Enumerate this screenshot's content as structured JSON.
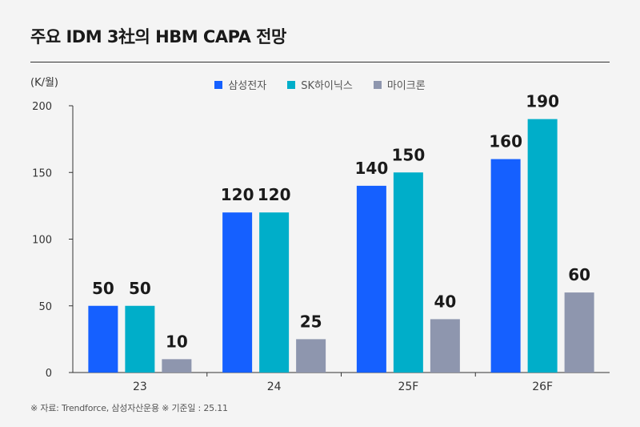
{
  "header": {
    "title": "주요 IDM 3社의 HBM CAPA 전망"
  },
  "footnote": "※ 자료: Trendforce, 삼성자산운용 ※ 기준일 : 25.11",
  "colors": {
    "samsung": "#1560ff",
    "skhynix": "#00aec9",
    "micron": "#8e96ae",
    "axis": "#333333"
  },
  "chart_data": {
    "type": "bar",
    "title": "주요 IDM 3社의 HBM CAPA 전망",
    "unit_label": "(K/월)",
    "xlabel": "",
    "ylabel": "(K/월)",
    "ylim": [
      0,
      200
    ],
    "yticks": [
      0,
      50,
      100,
      150,
      200
    ],
    "grid": false,
    "legend_position": "top-center",
    "categories": [
      "23",
      "24",
      "25F",
      "26F"
    ],
    "series": [
      {
        "name": "삼성전자",
        "color": "#1560ff",
        "values": [
          50,
          120,
          140,
          160
        ]
      },
      {
        "name": "SK하이닉스",
        "color": "#00aec9",
        "values": [
          50,
          120,
          150,
          190
        ]
      },
      {
        "name": "마이크론",
        "color": "#8e96ae",
        "values": [
          10,
          25,
          40,
          60
        ]
      }
    ]
  }
}
